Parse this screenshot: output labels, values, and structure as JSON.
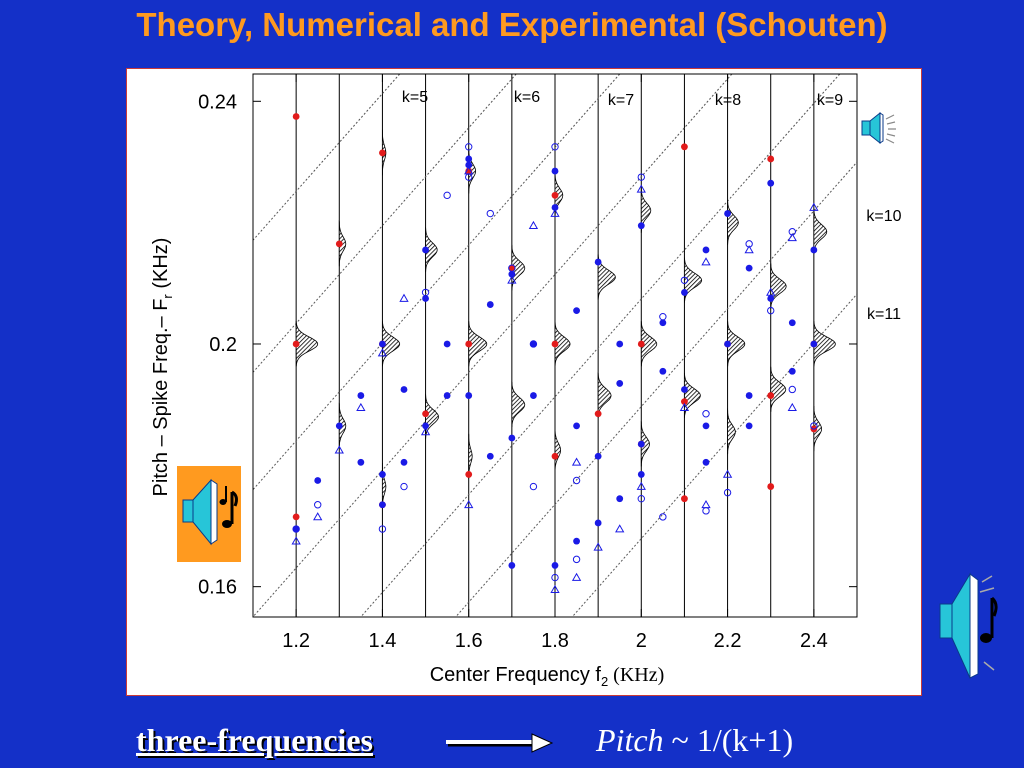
{
  "slide": {
    "title": "Theory, Numerical and Experimental (Schouten)",
    "caption_left": "three-frequencies",
    "caption_right_italic": "Pitch",
    "caption_right_rest": " ~ 1/(k+1)",
    "icons": [
      "speaker-icon",
      "speaker-music-icon"
    ]
  },
  "colors": {
    "background": "#1430c8",
    "title": "#ff9a1f",
    "red_points": "#e21b1b",
    "blue_points": "#1a1ae6",
    "frame_border": "#c83a3a"
  },
  "chart_data": {
    "type": "scatter",
    "title": "",
    "xlabel_main": "Center Frequency f",
    "xlabel_sub": "2",
    "xlabel_unit": " (KHz)",
    "ylabel_main": "Pitch – Spike Freq.– F",
    "ylabel_sub": "r",
    "ylabel_unit": "  (KHz)",
    "xlim": [
      1.1,
      2.5
    ],
    "ylim": [
      0.155,
      0.2445
    ],
    "x_ticks": [
      1.2,
      1.4,
      1.6,
      1.8,
      2,
      2.2,
      2.4
    ],
    "x_tick_labels": [
      "1.2",
      "1.4",
      "1.6",
      "1.8",
      "2",
      "2.2",
      "2.4"
    ],
    "y_ticks": [
      0.16,
      0.2,
      0.24
    ],
    "y_tick_labels": [
      "0.16",
      "0.2",
      "0.24"
    ],
    "grid": false,
    "vertical_reference_lines_x": [
      1.2,
      1.3,
      1.4,
      1.5,
      1.6,
      1.7,
      1.8,
      1.9,
      2.0,
      2.1,
      2.2,
      2.3,
      2.4
    ],
    "k_lines": [
      {
        "label": "k=5",
        "x_at_top": 1.44
      },
      {
        "label": "k=6",
        "x_at_top": 1.71
      },
      {
        "label": "k=7",
        "x_at_top": 1.95
      },
      {
        "label": "k=8",
        "x_at_top": 2.21
      },
      {
        "label": "k=9",
        "x_at_top": 2.46
      },
      {
        "label": "k=10",
        "x_at_top": 2.68
      },
      {
        "label": "k=11",
        "x_at_top": 2.95
      }
    ],
    "k_line_slope": 0.0806,
    "histograms": [
      {
        "x": 1.3,
        "y": 0.2165,
        "w": 0.015
      },
      {
        "x": 1.2,
        "y": 0.2,
        "w": 0.05
      },
      {
        "x": 1.3,
        "y": 0.1865,
        "w": 0.015
      },
      {
        "x": 1.4,
        "y": 0.2315,
        "w": 0.008
      },
      {
        "x": 1.4,
        "y": 0.2,
        "w": 0.04
      },
      {
        "x": 1.4,
        "y": 0.1765,
        "w": 0.008
      },
      {
        "x": 1.5,
        "y": 0.2155,
        "w": 0.027
      },
      {
        "x": 1.5,
        "y": 0.188,
        "w": 0.03
      },
      {
        "x": 1.6,
        "y": 0.2285,
        "w": 0.016
      },
      {
        "x": 1.6,
        "y": 0.2,
        "w": 0.042
      },
      {
        "x": 1.6,
        "y": 0.1815,
        "w": 0.008
      },
      {
        "x": 1.7,
        "y": 0.2125,
        "w": 0.03
      },
      {
        "x": 1.7,
        "y": 0.19,
        "w": 0.03
      },
      {
        "x": 1.8,
        "y": 0.2245,
        "w": 0.018
      },
      {
        "x": 1.8,
        "y": 0.2,
        "w": 0.035
      },
      {
        "x": 1.8,
        "y": 0.1825,
        "w": 0.013
      },
      {
        "x": 1.9,
        "y": 0.211,
        "w": 0.04
      },
      {
        "x": 1.9,
        "y": 0.1915,
        "w": 0.03
      },
      {
        "x": 2.0,
        "y": 0.222,
        "w": 0.022
      },
      {
        "x": 2.0,
        "y": 0.2,
        "w": 0.036
      },
      {
        "x": 2.0,
        "y": 0.1835,
        "w": 0.019
      },
      {
        "x": 2.1,
        "y": 0.2105,
        "w": 0.04
      },
      {
        "x": 2.1,
        "y": 0.1915,
        "w": 0.037
      },
      {
        "x": 2.2,
        "y": 0.22,
        "w": 0.025
      },
      {
        "x": 2.2,
        "y": 0.2,
        "w": 0.04
      },
      {
        "x": 2.2,
        "y": 0.1855,
        "w": 0.018
      },
      {
        "x": 2.3,
        "y": 0.2095,
        "w": 0.036
      },
      {
        "x": 2.3,
        "y": 0.1925,
        "w": 0.035
      },
      {
        "x": 2.4,
        "y": 0.2185,
        "w": 0.03
      },
      {
        "x": 2.4,
        "y": 0.2,
        "w": 0.05
      },
      {
        "x": 2.4,
        "y": 0.186,
        "w": 0.018
      }
    ],
    "series": [
      {
        "marker": "filled-circle",
        "color": "#e21b1b",
        "points": [
          [
            1.2,
            0.2375
          ],
          [
            1.3,
            0.2165
          ],
          [
            1.2,
            0.2
          ],
          [
            1.2,
            0.1715
          ],
          [
            1.4,
            0.2315
          ],
          [
            1.4,
            0.2
          ],
          [
            1.4,
            0.1735
          ],
          [
            1.6,
            0.2285
          ],
          [
            1.6,
            0.2
          ],
          [
            1.6,
            0.1785
          ],
          [
            1.5,
            0.1885
          ],
          [
            1.7,
            0.2125
          ],
          [
            1.8,
            0.2
          ],
          [
            1.8,
            0.1815
          ],
          [
            1.8,
            0.2245
          ],
          [
            1.9,
            0.1885
          ],
          [
            2.0,
            0.2
          ],
          [
            2.0,
            0.1835
          ],
          [
            2.1,
            0.2325
          ],
          [
            2.1,
            0.1905
          ],
          [
            2.1,
            0.1745
          ],
          [
            2.2,
            0.2
          ],
          [
            2.3,
            0.2305
          ],
          [
            2.3,
            0.1915
          ],
          [
            2.3,
            0.1765
          ],
          [
            2.4,
            0.2
          ],
          [
            2.4,
            0.186
          ]
        ]
      },
      {
        "marker": "filled-circle",
        "color": "#1a1ae6",
        "points": [
          [
            1.25,
            0.1775
          ],
          [
            1.2,
            0.1695
          ],
          [
            1.35,
            0.1915
          ],
          [
            1.3,
            0.1865
          ],
          [
            1.35,
            0.1805
          ],
          [
            1.4,
            0.2
          ],
          [
            1.4,
            0.1785
          ],
          [
            1.4,
            0.1735
          ],
          [
            1.45,
            0.1805
          ],
          [
            1.45,
            0.1925
          ],
          [
            1.5,
            0.2075
          ],
          [
            1.5,
            0.2155
          ],
          [
            1.55,
            0.2
          ],
          [
            1.55,
            0.1915
          ],
          [
            1.5,
            0.1865
          ],
          [
            1.6,
            0.2305
          ],
          [
            1.6,
            0.2295
          ],
          [
            1.65,
            0.1815
          ],
          [
            1.65,
            0.2065
          ],
          [
            1.6,
            0.1915
          ],
          [
            1.7,
            0.2115
          ],
          [
            1.7,
            0.1845
          ],
          [
            1.75,
            0.1915
          ],
          [
            1.75,
            0.2
          ],
          [
            1.7,
            0.1635
          ],
          [
            1.8,
            0.2285
          ],
          [
            1.8,
            0.2225
          ],
          [
            1.85,
            0.2055
          ],
          [
            1.85,
            0.1865
          ],
          [
            1.8,
            0.1635
          ],
          [
            1.85,
            0.1675
          ],
          [
            1.9,
            0.2135
          ],
          [
            1.95,
            0.2
          ],
          [
            1.95,
            0.1935
          ],
          [
            1.9,
            0.1815
          ],
          [
            1.9,
            0.1705
          ],
          [
            1.95,
            0.1745
          ],
          [
            2.0,
            0.2195
          ],
          [
            2.05,
            0.2035
          ],
          [
            2.05,
            0.1955
          ],
          [
            2.0,
            0.1835
          ],
          [
            2.0,
            0.1785
          ],
          [
            2.1,
            0.2085
          ],
          [
            2.1,
            0.1925
          ],
          [
            2.15,
            0.2155
          ],
          [
            2.15,
            0.1865
          ],
          [
            2.15,
            0.1805
          ],
          [
            2.2,
            0.2215
          ],
          [
            2.2,
            0.2
          ],
          [
            2.25,
            0.2125
          ],
          [
            2.25,
            0.1865
          ],
          [
            2.25,
            0.1915
          ],
          [
            2.3,
            0.2265
          ],
          [
            2.3,
            0.2075
          ],
          [
            2.35,
            0.2035
          ],
          [
            2.35,
            0.1955
          ],
          [
            2.4,
            0.2155
          ],
          [
            2.4,
            0.2
          ]
        ]
      },
      {
        "marker": "open-circle",
        "color": "#1a1ae6",
        "points": [
          [
            1.2,
            0.1695
          ],
          [
            1.25,
            0.1735
          ],
          [
            1.4,
            0.1695
          ],
          [
            1.45,
            0.1765
          ],
          [
            1.5,
            0.2085
          ],
          [
            1.55,
            0.2245
          ],
          [
            1.6,
            0.2325
          ],
          [
            1.6,
            0.2275
          ],
          [
            1.65,
            0.2215
          ],
          [
            1.7,
            0.2125
          ],
          [
            1.75,
            0.2
          ],
          [
            1.75,
            0.1765
          ],
          [
            1.8,
            0.2325
          ],
          [
            1.8,
            0.1615
          ],
          [
            1.85,
            0.1645
          ],
          [
            1.85,
            0.1775
          ],
          [
            2.0,
            0.2275
          ],
          [
            2.05,
            0.2045
          ],
          [
            2.0,
            0.1745
          ],
          [
            2.05,
            0.1715
          ],
          [
            2.1,
            0.2105
          ],
          [
            2.15,
            0.1885
          ],
          [
            2.15,
            0.1725
          ],
          [
            2.2,
            0.1755
          ],
          [
            2.25,
            0.2165
          ],
          [
            2.3,
            0.2055
          ],
          [
            2.35,
            0.2185
          ],
          [
            2.35,
            0.1925
          ],
          [
            2.4,
            0.1865
          ]
        ]
      },
      {
        "marker": "open-triangle",
        "color": "#1a1ae6",
        "points": [
          [
            1.2,
            0.1675
          ],
          [
            1.25,
            0.1715
          ],
          [
            1.3,
            0.1825
          ],
          [
            1.35,
            0.1895
          ],
          [
            1.4,
            0.1985
          ],
          [
            1.45,
            0.2075
          ],
          [
            1.5,
            0.1855
          ],
          [
            1.6,
            0.2285
          ],
          [
            1.6,
            0.1735
          ],
          [
            1.7,
            0.2105
          ],
          [
            1.75,
            0.2195
          ],
          [
            1.8,
            0.2215
          ],
          [
            1.8,
            0.1595
          ],
          [
            1.85,
            0.1615
          ],
          [
            1.85,
            0.1805
          ],
          [
            1.9,
            0.1665
          ],
          [
            1.95,
            0.1695
          ],
          [
            2.0,
            0.2255
          ],
          [
            2.0,
            0.1765
          ],
          [
            2.1,
            0.1895
          ],
          [
            2.15,
            0.2135
          ],
          [
            2.15,
            0.1735
          ],
          [
            2.2,
            0.1785
          ],
          [
            2.25,
            0.2155
          ],
          [
            2.3,
            0.2085
          ],
          [
            2.35,
            0.1895
          ],
          [
            2.35,
            0.2175
          ],
          [
            2.4,
            0.2225
          ]
        ]
      }
    ]
  }
}
